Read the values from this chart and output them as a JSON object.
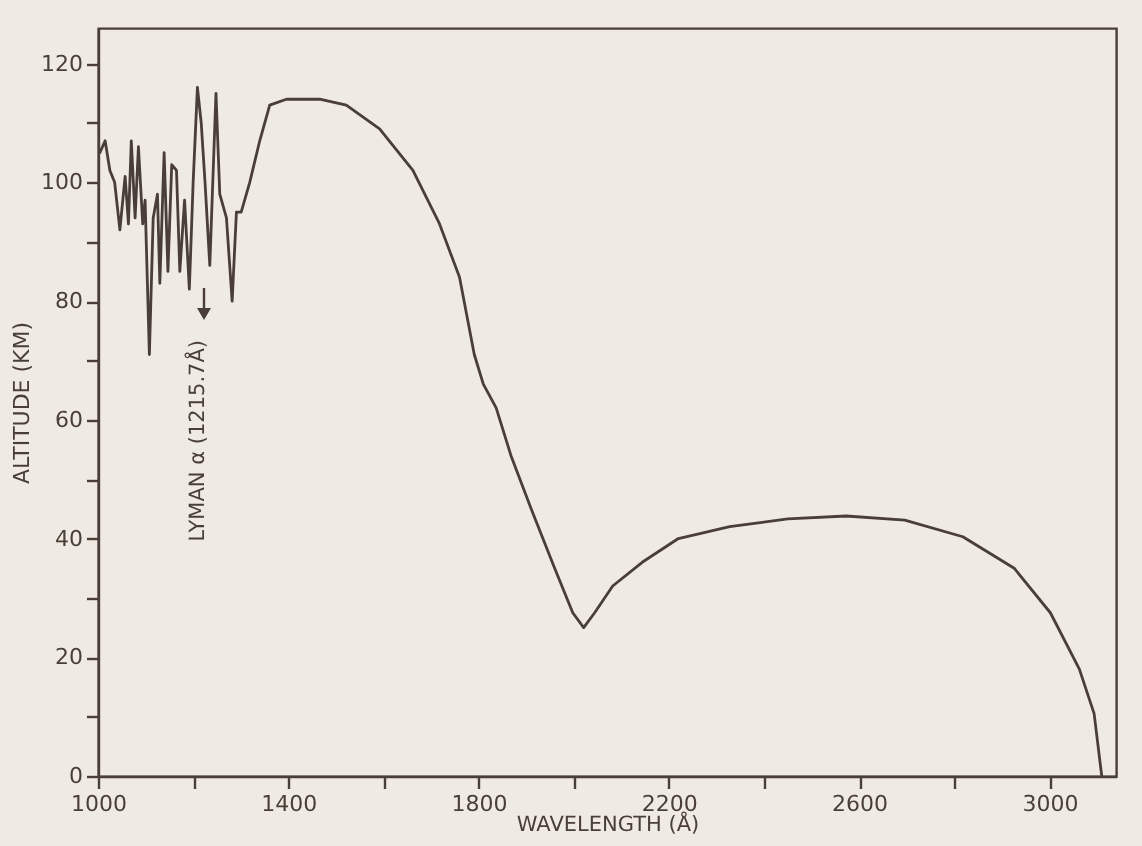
{
  "chart_data": {
    "type": "line",
    "xlabel": "WAVELENGTH (Å)",
    "ylabel": "ALTITUDE (KM)",
    "x": [
      1004,
      1015,
      1025,
      1035,
      1046,
      1057,
      1064,
      1070,
      1078,
      1085,
      1094,
      1099,
      1108,
      1116,
      1125,
      1130,
      1139,
      1147,
      1155,
      1165,
      1172,
      1182,
      1192,
      1200,
      1209,
      1217,
      1225,
      1235,
      1248,
      1256,
      1270,
      1282,
      1291,
      1301,
      1319,
      1340,
      1361,
      1396,
      1466,
      1522,
      1592,
      1662,
      1718,
      1760,
      1791,
      1810,
      1837,
      1868,
      1913,
      1960,
      1998,
      2021,
      2044,
      2082,
      2144,
      2220,
      2328,
      2450,
      2573,
      2696,
      2818,
      2926,
      3002,
      3063,
      3094,
      3110
    ],
    "series": [
      {
        "color": "#4a3f38",
        "values": [
          105,
          107,
          102,
          100,
          92,
          101,
          93,
          107,
          94,
          106,
          93,
          97,
          71,
          94,
          98,
          83,
          105,
          85,
          103,
          102,
          85,
          97,
          82,
          100,
          116,
          110,
          100,
          86,
          115,
          98,
          94,
          80,
          95,
          95,
          100,
          107,
          113,
          114,
          114,
          113,
          109,
          102,
          93,
          84,
          71,
          66,
          62,
          54,
          44.5,
          35,
          27.5,
          25,
          27.5,
          32,
          36,
          40,
          42,
          43.3,
          43.8,
          43.1,
          40.3,
          35,
          27.5,
          18,
          10.5,
          0
        ]
      }
    ],
    "xlim": [
      1000,
      3140
    ],
    "ylim": [
      0,
      126
    ],
    "xticks": [
      1000,
      {
        "value": 1200,
        "label": null
      },
      1400,
      {
        "value": 1600,
        "label": null
      },
      1800,
      {
        "value": 2000,
        "label": null
      },
      2200,
      {
        "value": 2400,
        "label": null
      },
      2600,
      {
        "value": 2800,
        "label": null
      },
      3000
    ],
    "yticks": [
      0,
      {
        "value": 10,
        "label": null
      },
      20,
      {
        "value": 30,
        "label": null
      },
      40,
      {
        "value": 50,
        "label": null
      },
      60,
      {
        "value": 70,
        "label": null
      },
      80,
      {
        "value": 90,
        "label": null
      },
      100,
      {
        "value": 110,
        "label": null
      },
      120
    ],
    "annotations": [
      "LYMAN α (1215.7Å)"
    ],
    "grid": false,
    "marker": "none",
    "line_style": "solid"
  }
}
